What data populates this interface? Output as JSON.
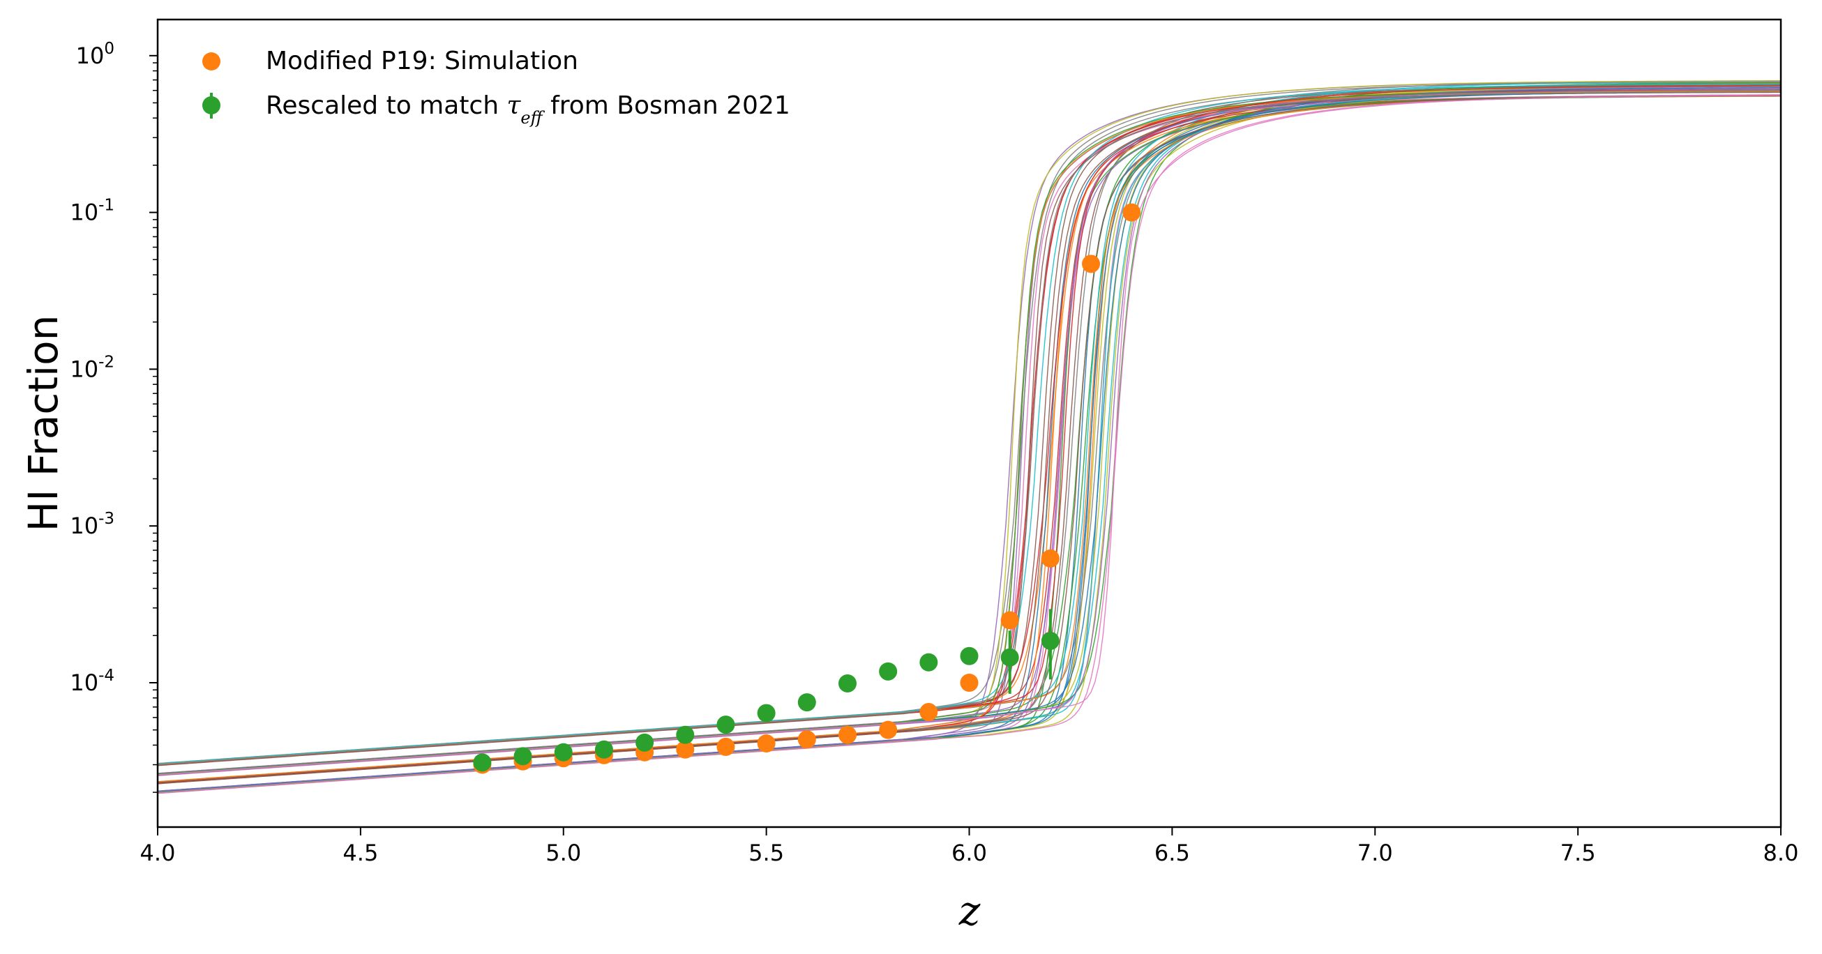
{
  "chart_data": {
    "type": "scatter",
    "xlabel": "z",
    "ylabel": "HI Fraction",
    "xlim": [
      4.0,
      8.0
    ],
    "ylim": [
      1.2e-05,
      1.7
    ],
    "yscale": "log",
    "grid": false,
    "legend_position": "top-left",
    "x_ticks": [
      "4.0",
      "4.5",
      "5.0",
      "5.5",
      "6.0",
      "6.5",
      "7.0",
      "7.5",
      "8.0"
    ],
    "y_ticks": [
      {
        "base": "10",
        "exp": "-4",
        "value": 0.0001
      },
      {
        "base": "10",
        "exp": "-3",
        "value": 0.001
      },
      {
        "base": "10",
        "exp": "-2",
        "value": 0.01
      },
      {
        "base": "10",
        "exp": "-1",
        "value": 0.1
      },
      {
        "base": "10",
        "exp": "0",
        "value": 1
      }
    ],
    "series": [
      {
        "name": "Modified P19: Simulation",
        "color": "#ff7f0e",
        "marker": "circle",
        "x": [
          4.8,
          4.9,
          5.0,
          5.1,
          5.2,
          5.3,
          5.4,
          5.5,
          5.6,
          5.7,
          5.8,
          5.9,
          6.0,
          6.1,
          6.2,
          6.3,
          6.4
        ],
        "y": [
          3e-05,
          3.15e-05,
          3.3e-05,
          3.45e-05,
          3.6e-05,
          3.75e-05,
          3.9e-05,
          4.1e-05,
          4.35e-05,
          4.65e-05,
          5e-05,
          6.5e-05,
          0.0001,
          0.00025,
          0.00062,
          0.047,
          0.1
        ]
      },
      {
        "name_prefix": "Rescaled to match ",
        "name_math": "τ",
        "name_math_sub": "eff",
        "name_suffix": " from Bosman 2021",
        "color": "#2ca02c",
        "marker": "circle-errorbar",
        "x": [
          4.8,
          4.9,
          5.0,
          5.1,
          5.2,
          5.3,
          5.4,
          5.5,
          5.6,
          5.7,
          5.8,
          5.9,
          6.0,
          6.1,
          6.2
        ],
        "y": [
          3.1e-05,
          3.4e-05,
          3.6e-05,
          3.75e-05,
          4.15e-05,
          4.65e-05,
          5.4e-05,
          6.4e-05,
          7.5e-05,
          9.9e-05,
          0.000118,
          0.000135,
          0.000148,
          0.000145,
          0.000185
        ],
        "yerr_low": [
          1e-06,
          1e-06,
          1e-06,
          1e-06,
          1e-06,
          1e-06,
          1.5e-06,
          2e-06,
          2e-06,
          3e-06,
          4e-06,
          6e-06,
          1e-05,
          6e-05,
          8e-05
        ],
        "yerr_high": [
          1e-06,
          1e-06,
          1e-06,
          1e-06,
          1e-06,
          1e-06,
          1.5e-06,
          2e-06,
          2e-06,
          3e-06,
          4e-06,
          6e-06,
          1e-05,
          7e-05,
          0.00011
        ]
      }
    ],
    "model_curves": {
      "count": 48,
      "colors": [
        "#1f77b4",
        "#ff7f0e",
        "#2ca02c",
        "#d62728",
        "#9467bd",
        "#8c564b",
        "#e377c2",
        "#7f7f7f",
        "#bcbd22",
        "#17becf"
      ],
      "z_reion_range": [
        6.09,
        6.36
      ],
      "low_z_amplitude_range": [
        3e-05,
        7e-05
      ],
      "high_z_value_at_8": [
        0.55,
        0.7
      ]
    }
  }
}
